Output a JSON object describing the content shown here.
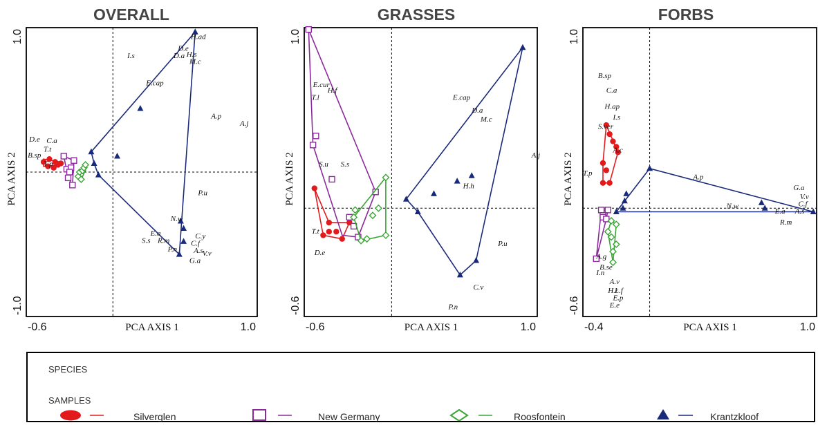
{
  "panels": [
    "OVERALL",
    "GRASSES",
    "FORBS"
  ],
  "legend": {
    "species_heading": "SPECIES",
    "samples_heading": "SAMPLES",
    "sites": [
      "Silverglen",
      "New Germany",
      "Roosfontein",
      "Krantzkloof"
    ]
  },
  "colors": {
    "Silverglen": "#e31a1c",
    "New Germany": "#8b2a9b",
    "Roosfontein": "#3aa635",
    "Krantzkloof": "#1a2a7a"
  },
  "chart_data": [
    {
      "type": "scatter",
      "title": "OVERALL",
      "xlabel": "PCA AXIS 1",
      "ylabel": "PCA AXIS 2",
      "xlim": [
        -0.6,
        1.0
      ],
      "ylim": [
        -1.0,
        1.0
      ],
      "xtick_labels": [
        "-0.6",
        "1.0"
      ],
      "ytick_labels": [
        "-1.0",
        "1.0"
      ],
      "species": [
        {
          "name": "H.ad",
          "x": 0.54,
          "y": 0.92
        },
        {
          "name": "D.e",
          "x": 0.45,
          "y": 0.84
        },
        {
          "name": "H.s",
          "x": 0.51,
          "y": 0.8
        },
        {
          "name": "D.a",
          "x": 0.42,
          "y": 0.79
        },
        {
          "name": "M.c",
          "x": 0.53,
          "y": 0.75
        },
        {
          "name": "I.s",
          "x": 0.1,
          "y": 0.79
        },
        {
          "name": "E.cap",
          "x": 0.23,
          "y": 0.6
        },
        {
          "name": "A.p",
          "x": 0.68,
          "y": 0.37
        },
        {
          "name": "A.j",
          "x": 0.88,
          "y": 0.32
        },
        {
          "name": "D.e",
          "x": -0.58,
          "y": 0.21
        },
        {
          "name": "C.a",
          "x": -0.46,
          "y": 0.2
        },
        {
          "name": "T.t",
          "x": -0.48,
          "y": 0.14
        },
        {
          "name": "B.sp",
          "x": -0.59,
          "y": 0.1
        },
        {
          "name": "T.p",
          "x": -0.48,
          "y": 0.04
        },
        {
          "name": "P.u",
          "x": 0.59,
          "y": -0.16
        },
        {
          "name": "N.w",
          "x": 0.4,
          "y": -0.34
        },
        {
          "name": "E.a",
          "x": 0.26,
          "y": -0.44
        },
        {
          "name": "C.y",
          "x": 0.57,
          "y": -0.46
        },
        {
          "name": "S.s",
          "x": 0.2,
          "y": -0.49
        },
        {
          "name": "R.m",
          "x": 0.31,
          "y": -0.49
        },
        {
          "name": "C.f",
          "x": 0.54,
          "y": -0.51
        },
        {
          "name": "P.n",
          "x": 0.38,
          "y": -0.55
        },
        {
          "name": "A.s",
          "x": 0.56,
          "y": -0.56
        },
        {
          "name": "V.v",
          "x": 0.62,
          "y": -0.58
        },
        {
          "name": "G.a",
          "x": 0.53,
          "y": -0.63
        }
      ],
      "samples": [
        {
          "site": "Silverglen",
          "points": [
            [
              -0.48,
              0.07
            ],
            [
              -0.44,
              0.09
            ],
            [
              -0.4,
              0.07
            ],
            [
              -0.38,
              0.05
            ],
            [
              -0.45,
              0.04
            ],
            [
              -0.41,
              0.03
            ],
            [
              -0.36,
              0.06
            ]
          ],
          "hull": [
            [
              -0.48,
              0.04
            ],
            [
              -0.48,
              0.09
            ],
            [
              -0.36,
              0.07
            ],
            [
              -0.36,
              0.05
            ]
          ]
        },
        {
          "site": "New Germany",
          "points": [
            [
              -0.34,
              0.11
            ],
            [
              -0.32,
              0.02
            ],
            [
              -0.31,
              -0.04
            ],
            [
              -0.28,
              -0.09
            ],
            [
              -0.29,
              0.03
            ],
            [
              -0.27,
              0.08
            ],
            [
              -0.3,
              0.0
            ]
          ],
          "hull": [
            [
              -0.34,
              0.11
            ],
            [
              -0.27,
              0.08
            ],
            [
              -0.28,
              -0.09
            ],
            [
              -0.31,
              -0.04
            ]
          ]
        },
        {
          "site": "Roosfontein",
          "points": [
            [
              -0.24,
              -0.03
            ],
            [
              -0.23,
              0.0
            ],
            [
              -0.21,
              0.01
            ],
            [
              -0.2,
              0.03
            ],
            [
              -0.19,
              0.05
            ],
            [
              -0.22,
              -0.05
            ]
          ],
          "hull": [
            [
              -0.24,
              -0.03
            ],
            [
              -0.19,
              0.05
            ],
            [
              -0.2,
              -0.01
            ],
            [
              -0.22,
              -0.05
            ]
          ]
        },
        {
          "site": "Krantzkloof",
          "points": [
            [
              0.57,
              0.97
            ],
            [
              0.19,
              0.44
            ],
            [
              -0.15,
              0.14
            ],
            [
              0.03,
              0.11
            ],
            [
              -0.13,
              0.06
            ],
            [
              -0.1,
              -0.02
            ],
            [
              0.47,
              -0.34
            ],
            [
              0.49,
              -0.39
            ],
            [
              0.49,
              -0.48
            ],
            [
              0.46,
              -0.57
            ]
          ],
          "hull": [
            [
              -0.15,
              0.14
            ],
            [
              0.57,
              0.97
            ],
            [
              0.46,
              -0.57
            ],
            [
              -0.1,
              -0.02
            ],
            [
              -0.13,
              0.06
            ]
          ]
        }
      ]
    },
    {
      "type": "scatter",
      "title": "GRASSES",
      "xlabel": "PCA AXIS 1",
      "ylabel": "PCA AXIS 2",
      "xlim": [
        -0.6,
        1.0
      ],
      "ylim": [
        -0.6,
        1.0
      ],
      "xtick_labels": [
        "-0.6",
        "1.0"
      ],
      "ytick_labels": [
        "-0.6",
        "1.0"
      ],
      "species": [
        {
          "name": "E.cur",
          "x": -0.54,
          "y": 0.67
        },
        {
          "name": "H.f",
          "x": -0.44,
          "y": 0.64
        },
        {
          "name": "T.l",
          "x": -0.55,
          "y": 0.6
        },
        {
          "name": "S.u",
          "x": -0.5,
          "y": 0.23
        },
        {
          "name": "S.s",
          "x": -0.35,
          "y": 0.23
        },
        {
          "name": "E.cap",
          "x": 0.42,
          "y": 0.6
        },
        {
          "name": "D.a",
          "x": 0.55,
          "y": 0.53
        },
        {
          "name": "M.c",
          "x": 0.61,
          "y": 0.48
        },
        {
          "name": "A.j",
          "x": 0.96,
          "y": 0.28
        },
        {
          "name": "H.h",
          "x": 0.49,
          "y": 0.11
        },
        {
          "name": "T.t",
          "x": -0.55,
          "y": -0.14
        },
        {
          "name": "D.e",
          "x": -0.53,
          "y": -0.26
        },
        {
          "name": "P.u",
          "x": 0.73,
          "y": -0.21
        },
        {
          "name": "C.v",
          "x": 0.56,
          "y": -0.45
        },
        {
          "name": "P.n",
          "x": 0.39,
          "y": -0.56
        }
      ],
      "samples": [
        {
          "site": "Silverglen",
          "points": [
            [
              -0.53,
              0.11
            ],
            [
              -0.43,
              -0.08
            ],
            [
              -0.43,
              -0.13
            ],
            [
              -0.47,
              -0.15
            ],
            [
              -0.38,
              -0.13
            ],
            [
              -0.34,
              -0.17
            ],
            [
              -0.29,
              -0.08
            ]
          ],
          "hull": [
            [
              -0.53,
              0.11
            ],
            [
              -0.47,
              -0.15
            ],
            [
              -0.34,
              -0.17
            ],
            [
              -0.29,
              -0.08
            ],
            [
              -0.43,
              -0.08
            ]
          ]
        },
        {
          "site": "New Germany",
          "points": [
            [
              -0.57,
              0.99
            ],
            [
              -0.52,
              0.4
            ],
            [
              -0.54,
              0.35
            ],
            [
              -0.41,
              0.16
            ],
            [
              -0.29,
              -0.05
            ],
            [
              -0.23,
              -0.16
            ],
            [
              -0.11,
              0.09
            ],
            [
              -0.26,
              -0.1
            ]
          ],
          "hull": [
            [
              -0.57,
              0.99
            ],
            [
              -0.11,
              0.09
            ],
            [
              -0.23,
              -0.16
            ],
            [
              -0.34,
              -0.15
            ],
            [
              -0.54,
              0.35
            ]
          ]
        },
        {
          "site": "Roosfontein",
          "points": [
            [
              -0.26,
              -0.05
            ],
            [
              -0.25,
              -0.01
            ],
            [
              -0.21,
              -0.18
            ],
            [
              -0.17,
              -0.17
            ],
            [
              -0.13,
              -0.04
            ],
            [
              -0.09,
              0.0
            ],
            [
              -0.04,
              0.17
            ],
            [
              -0.04,
              -0.15
            ]
          ],
          "hull": [
            [
              -0.26,
              -0.05
            ],
            [
              -0.04,
              0.17
            ],
            [
              -0.04,
              -0.15
            ],
            [
              -0.21,
              -0.18
            ]
          ]
        },
        {
          "site": "Krantzkloof",
          "points": [
            [
              0.9,
              0.89
            ],
            [
              0.55,
              0.18
            ],
            [
              0.45,
              0.15
            ],
            [
              0.29,
              0.08
            ],
            [
              0.18,
              -0.02
            ],
            [
              0.1,
              0.05
            ],
            [
              0.58,
              -0.29
            ],
            [
              0.47,
              -0.37
            ]
          ],
          "hull": [
            [
              0.1,
              0.05
            ],
            [
              0.9,
              0.89
            ],
            [
              0.58,
              -0.29
            ],
            [
              0.47,
              -0.37
            ],
            [
              0.18,
              -0.02
            ]
          ]
        }
      ]
    },
    {
      "type": "scatter",
      "title": "FORBS",
      "xlabel": "PCA AXIS 1",
      "ylabel": "PCA AXIS 2",
      "xlim": [
        -0.4,
        1.0
      ],
      "ylim": [
        -0.6,
        1.0
      ],
      "xtick_labels": [
        "-0.4",
        "1.0"
      ],
      "ytick_labels": [
        "-0.6",
        "1.0"
      ],
      "species": [
        {
          "name": "B.sp",
          "x": -0.31,
          "y": 0.72
        },
        {
          "name": "C.a",
          "x": -0.26,
          "y": 0.64
        },
        {
          "name": "H.ap",
          "x": -0.27,
          "y": 0.55
        },
        {
          "name": "I.s",
          "x": -0.22,
          "y": 0.49
        },
        {
          "name": "S.ver",
          "x": -0.31,
          "y": 0.44
        },
        {
          "name": "A.c",
          "x": -0.22,
          "y": 0.31
        },
        {
          "name": "T.p",
          "x": -0.4,
          "y": 0.18
        },
        {
          "name": "A.p",
          "x": 0.26,
          "y": 0.16
        },
        {
          "name": "N.w",
          "x": 0.46,
          "y": 0.0
        },
        {
          "name": "G.a",
          "x": 0.86,
          "y": 0.1
        },
        {
          "name": "V.v",
          "x": 0.9,
          "y": 0.05
        },
        {
          "name": "C.f",
          "x": 0.89,
          "y": 0.01
        },
        {
          "name": "E.a",
          "x": 0.75,
          "y": -0.03
        },
        {
          "name": "A.s",
          "x": 0.87,
          "y": -0.03
        },
        {
          "name": "R.m",
          "x": 0.78,
          "y": -0.09
        },
        {
          "name": "A.g",
          "x": -0.32,
          "y": -0.28
        },
        {
          "name": "B.se",
          "x": -0.3,
          "y": -0.34
        },
        {
          "name": "I.n",
          "x": -0.32,
          "y": -0.37
        },
        {
          "name": "A.v",
          "x": -0.24,
          "y": -0.42
        },
        {
          "name": "H.r",
          "x": -0.25,
          "y": -0.47
        },
        {
          "name": "L.f",
          "x": -0.21,
          "y": -0.47
        },
        {
          "name": "E.p",
          "x": -0.22,
          "y": -0.51
        },
        {
          "name": "E.e",
          "x": -0.24,
          "y": -0.55
        }
      ],
      "samples": [
        {
          "site": "Silverglen",
          "points": [
            [
              -0.26,
              0.46
            ],
            [
              -0.24,
              0.41
            ],
            [
              -0.22,
              0.37
            ],
            [
              -0.2,
              0.34
            ],
            [
              -0.19,
              0.31
            ],
            [
              -0.28,
              0.25
            ],
            [
              -0.26,
              0.21
            ],
            [
              -0.28,
              0.14
            ],
            [
              -0.24,
              0.14
            ]
          ],
          "hull": [
            [
              -0.26,
              0.46
            ],
            [
              -0.19,
              0.31
            ],
            [
              -0.24,
              0.14
            ],
            [
              -0.28,
              0.14
            ],
            [
              -0.28,
              0.25
            ]
          ]
        },
        {
          "site": "New Germany",
          "points": [
            [
              -0.29,
              -0.01
            ],
            [
              -0.25,
              -0.01
            ],
            [
              -0.28,
              -0.04
            ],
            [
              -0.28,
              -0.05
            ],
            [
              -0.26,
              -0.06
            ],
            [
              -0.32,
              -0.28
            ]
          ],
          "hull": [
            [
              -0.29,
              -0.01
            ],
            [
              -0.25,
              -0.01
            ],
            [
              -0.26,
              -0.06
            ],
            [
              -0.32,
              -0.28
            ]
          ]
        },
        {
          "site": "Roosfontein",
          "points": [
            [
              -0.23,
              -0.07
            ],
            [
              -0.25,
              -0.13
            ],
            [
              -0.23,
              -0.16
            ],
            [
              -0.2,
              -0.09
            ],
            [
              -0.2,
              -0.2
            ],
            [
              -0.22,
              -0.24
            ],
            [
              -0.22,
              -0.3
            ]
          ],
          "hull": [
            [
              -0.23,
              -0.07
            ],
            [
              -0.2,
              -0.09
            ],
            [
              -0.22,
              -0.3
            ],
            [
              -0.25,
              -0.13
            ]
          ]
        },
        {
          "site": "Krantzkloof",
          "points": [
            [
              0.0,
              0.22
            ],
            [
              -0.14,
              0.08
            ],
            [
              -0.15,
              0.04
            ],
            [
              -0.16,
              0.0
            ],
            [
              -0.2,
              -0.02
            ],
            [
              0.67,
              0.03
            ],
            [
              0.69,
              0.0
            ],
            [
              0.98,
              -0.02
            ]
          ],
          "hull": [
            [
              -0.2,
              -0.02
            ],
            [
              0.0,
              0.22
            ],
            [
              0.98,
              -0.02
            ]
          ]
        }
      ]
    }
  ]
}
